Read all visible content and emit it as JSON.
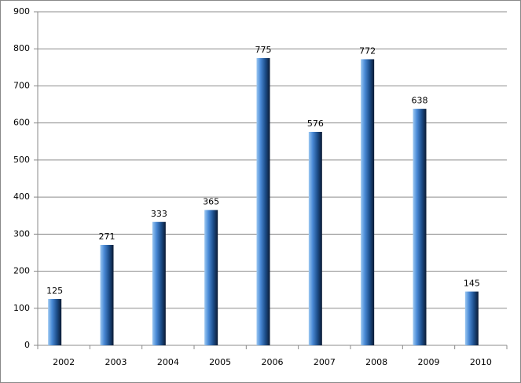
{
  "chart_data": {
    "type": "bar",
    "categories": [
      "2002",
      "2003",
      "2004",
      "2005",
      "2006",
      "2007",
      "2008",
      "2009",
      "2010"
    ],
    "values": [
      125,
      271,
      333,
      365,
      775,
      576,
      772,
      638,
      145
    ],
    "color": "#3f7fc7",
    "ylim": [
      0,
      900
    ],
    "yticks": [
      0,
      100,
      200,
      300,
      400,
      500,
      600,
      700,
      800,
      900
    ],
    "grid": true
  }
}
